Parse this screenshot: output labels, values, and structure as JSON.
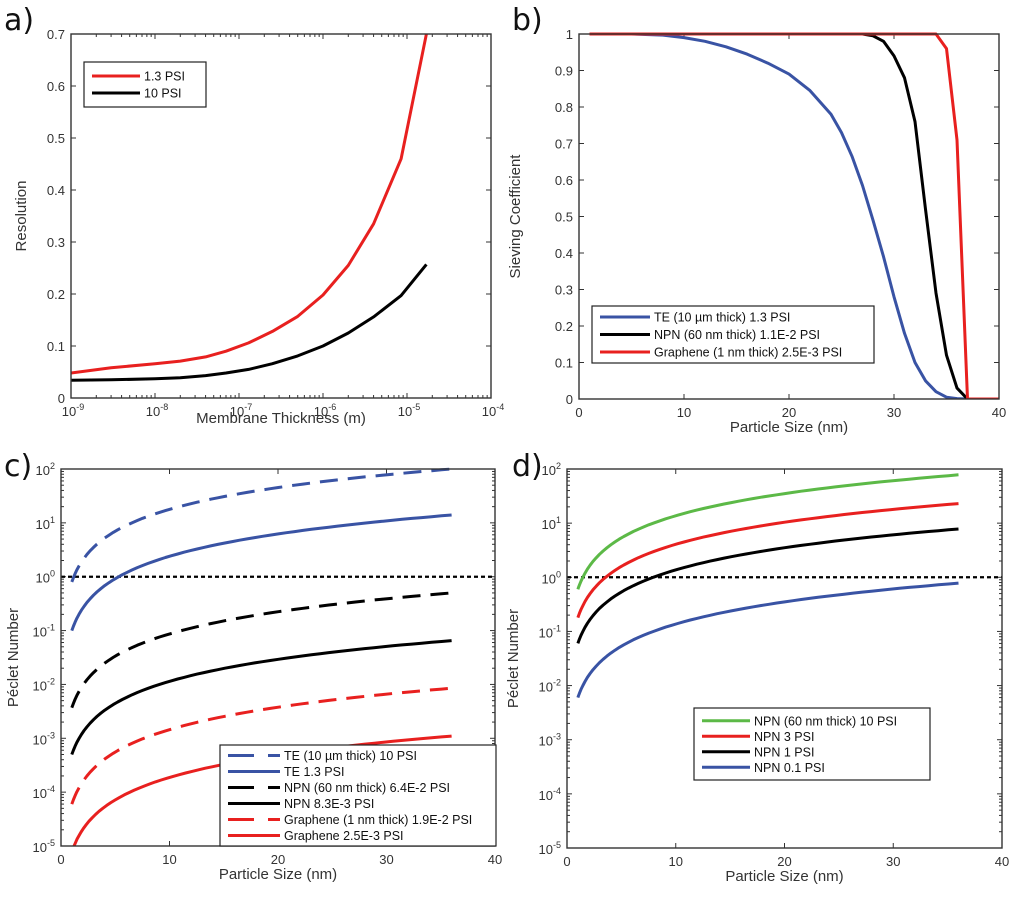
{
  "chart_data": [
    {
      "panel": "a)",
      "type": "line",
      "xscale": "log",
      "yscale": "linear",
      "xlabel": "Membrane Thickness (m)",
      "ylabel": "Resolution",
      "xlim": [
        1e-09,
        0.0001
      ],
      "ylim": [
        0,
        0.7
      ],
      "xticks": [
        {
          "base": "10",
          "exp": "-9",
          "v": 1e-09
        },
        {
          "base": "10",
          "exp": "-8",
          "v": 1e-08
        },
        {
          "base": "10",
          "exp": "-7",
          "v": 1e-07
        },
        {
          "base": "10",
          "exp": "-6",
          "v": 1e-06
        },
        {
          "base": "10",
          "exp": "-5",
          "v": 1e-05
        },
        {
          "base": "10",
          "exp": "-4",
          "v": 0.0001
        }
      ],
      "yticks": [
        "0",
        "0.1",
        "0.2",
        "0.3",
        "0.4",
        "0.5",
        "0.6",
        "0.7"
      ],
      "legend_position": "top-left",
      "series": [
        {
          "name": "1.3 PSI",
          "color": "#e8201f",
          "dash": false,
          "x": [
            1e-09,
            3e-09,
            1e-08,
            2e-08,
            4e-08,
            7e-08,
            1.3e-07,
            2.5e-07,
            5e-07,
            1e-06,
            2e-06,
            4e-06,
            8.5e-06,
            1.7e-05
          ],
          "y": [
            0.048,
            0.058,
            0.066,
            0.071,
            0.079,
            0.09,
            0.106,
            0.128,
            0.157,
            0.198,
            0.255,
            0.335,
            0.46,
            0.7
          ]
        },
        {
          "name": "10 PSI",
          "color": "#000000",
          "dash": false,
          "x": [
            1e-09,
            3e-09,
            1e-08,
            2e-08,
            4e-08,
            7e-08,
            1.3e-07,
            2.5e-07,
            5e-07,
            1e-06,
            2e-06,
            4e-06,
            8.5e-06,
            1.7e-05
          ],
          "y": [
            0.034,
            0.035,
            0.037,
            0.039,
            0.043,
            0.048,
            0.055,
            0.066,
            0.081,
            0.1,
            0.125,
            0.156,
            0.197,
            0.257
          ]
        }
      ]
    },
    {
      "panel": "b)",
      "type": "line",
      "xscale": "linear",
      "yscale": "linear",
      "xlabel": "Particle Size (nm)",
      "ylabel": "Sieving Coefficient",
      "xlim": [
        0,
        40
      ],
      "ylim": [
        0,
        1
      ],
      "xticks": [
        "0",
        "10",
        "20",
        "30",
        "40"
      ],
      "yticks": [
        "0",
        "0.1",
        "0.2",
        "0.3",
        "0.4",
        "0.5",
        "0.6",
        "0.7",
        "0.8",
        "0.9",
        "1"
      ],
      "legend_position": "bottom-left",
      "series": [
        {
          "name": "TE (10 µm thick) 1.3 PSI",
          "color": "#3953a4",
          "dash": false,
          "x": [
            1,
            5,
            8,
            10,
            12,
            14,
            16,
            18,
            20,
            22,
            24,
            25,
            26,
            27,
            28,
            29,
            30,
            31,
            32,
            33,
            34,
            35,
            36,
            37,
            40
          ],
          "y": [
            1,
            1,
            0.997,
            0.99,
            0.98,
            0.965,
            0.945,
            0.92,
            0.89,
            0.845,
            0.78,
            0.73,
            0.665,
            0.585,
            0.49,
            0.39,
            0.28,
            0.18,
            0.1,
            0.05,
            0.02,
            0.005,
            0.001,
            0,
            0
          ]
        },
        {
          "name": "NPN (60 nm thick) 1.1E-2 PSI",
          "color": "#000000",
          "dash": false,
          "x": [
            1,
            27,
            28,
            29,
            30,
            31,
            32,
            33,
            34,
            35,
            36,
            37,
            40
          ],
          "y": [
            1,
            1,
            0.995,
            0.98,
            0.94,
            0.88,
            0.76,
            0.52,
            0.29,
            0.12,
            0.03,
            0,
            0
          ]
        },
        {
          "name": "Graphene (1 nm thick) 2.5E-3 PSI",
          "color": "#e8201f",
          "dash": false,
          "x": [
            1,
            28,
            34,
            35,
            36,
            37,
            40
          ],
          "y": [
            1,
            1,
            1,
            0.96,
            0.71,
            0,
            0
          ]
        }
      ]
    },
    {
      "panel": "c)",
      "type": "line",
      "xscale": "linear",
      "yscale": "log",
      "xlabel": "Particle Size (nm)",
      "ylabel": "Péclet Number",
      "xlim": [
        0,
        40
      ],
      "ylim": [
        1e-05,
        100.0
      ],
      "xticks": [
        "0",
        "10",
        "20",
        "30",
        "40"
      ],
      "yticks": [
        {
          "base": "10",
          "exp": "-5",
          "v": 1e-05
        },
        {
          "base": "10",
          "exp": "-4",
          "v": 0.0001
        },
        {
          "base": "10",
          "exp": "-3",
          "v": 0.001
        },
        {
          "base": "10",
          "exp": "-2",
          "v": 0.01
        },
        {
          "base": "10",
          "exp": "-1",
          "v": 0.1
        },
        {
          "base": "10",
          "exp": "0",
          "v": 1
        },
        {
          "base": "10",
          "exp": "1",
          "v": 10
        },
        {
          "base": "10",
          "exp": "2",
          "v": 100
        }
      ],
      "reference_line": {
        "y": 1,
        "style": "dotted",
        "color": "#000000"
      },
      "legend_position": "bottom-right",
      "series": [
        {
          "name": "TE (10 µm thick) 10 PSI",
          "color": "#3953a4",
          "dash": true,
          "x_range": [
            1,
            36
          ],
          "y_start": 0.8,
          "y_end": 100
        },
        {
          "name": "TE 1.3 PSI",
          "color": "#3953a4",
          "dash": false,
          "x_range": [
            1,
            36
          ],
          "y_start": 0.1,
          "y_end": 14
        },
        {
          "name": "NPN (60 nm thick) 6.4E-2 PSI",
          "color": "#000000",
          "dash": true,
          "x_range": [
            1,
            36
          ],
          "y_start": 0.0037,
          "y_end": 0.5
        },
        {
          "name": "NPN 8.3E-3 PSI",
          "color": "#000000",
          "dash": false,
          "x_range": [
            1,
            36
          ],
          "y_start": 0.0005,
          "y_end": 0.065
        },
        {
          "name": "Graphene (1 nm thick) 1.9E-2 PSI",
          "color": "#e8201f",
          "dash": true,
          "x_range": [
            1,
            36
          ],
          "y_start": 6e-05,
          "y_end": 0.0085
        },
        {
          "name": "Graphene 2.5E-3 PSI",
          "color": "#e8201f",
          "dash": false,
          "x_range": [
            1.2,
            36
          ],
          "y_start": 1e-05,
          "y_end": 0.0011
        }
      ]
    },
    {
      "panel": "d)",
      "type": "line",
      "xscale": "linear",
      "yscale": "log",
      "xlabel": "Particle Size (nm)",
      "ylabel": "Péclet Number",
      "xlim": [
        0,
        40
      ],
      "ylim": [
        1e-05,
        100.0
      ],
      "xticks": [
        "0",
        "10",
        "20",
        "30",
        "40"
      ],
      "yticks": [
        {
          "base": "10",
          "exp": "-5",
          "v": 1e-05
        },
        {
          "base": "10",
          "exp": "-4",
          "v": 0.0001
        },
        {
          "base": "10",
          "exp": "-3",
          "v": 0.001
        },
        {
          "base": "10",
          "exp": "-2",
          "v": 0.01
        },
        {
          "base": "10",
          "exp": "-1",
          "v": 0.1
        },
        {
          "base": "10",
          "exp": "0",
          "v": 1
        },
        {
          "base": "10",
          "exp": "1",
          "v": 10
        },
        {
          "base": "10",
          "exp": "2",
          "v": 100
        }
      ],
      "reference_line": {
        "y": 1,
        "style": "dotted",
        "color": "#000000"
      },
      "legend_position": "center",
      "series": [
        {
          "name": "NPN (60 nm thick) 10 PSI",
          "color": "#5cb947",
          "dash": false,
          "x_range": [
            1,
            36
          ],
          "y_start": 0.6,
          "y_end": 78
        },
        {
          "name": "NPN 3 PSI",
          "color": "#e8201f",
          "dash": false,
          "x_range": [
            1,
            36
          ],
          "y_start": 0.18,
          "y_end": 23
        },
        {
          "name": "NPN 1 PSI",
          "color": "#000000",
          "dash": false,
          "x_range": [
            1,
            36
          ],
          "y_start": 0.06,
          "y_end": 7.8
        },
        {
          "name": "NPN 0.1 PSI",
          "color": "#3953a4",
          "dash": false,
          "x_range": [
            1,
            36
          ],
          "y_start": 0.006,
          "y_end": 0.78
        }
      ]
    }
  ]
}
